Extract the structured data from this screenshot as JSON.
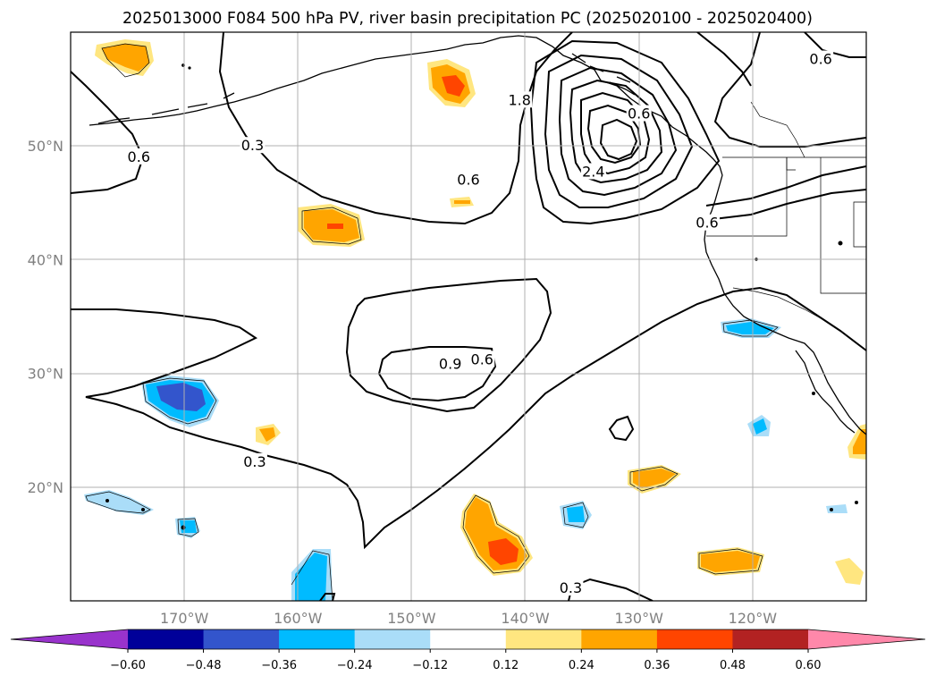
{
  "title": "2025013000 F084 500 hPa PV, river basin precipitation PC (2025020100 - 2025020400)",
  "map": {
    "lon_range": [
      -180,
      -110
    ],
    "lat_range": [
      10,
      60
    ],
    "lat_ticks": [
      {
        "lat": 50,
        "label": "50°N"
      },
      {
        "lat": 40,
        "label": "40°N"
      },
      {
        "lat": 30,
        "label": "30°N"
      },
      {
        "lat": 20,
        "label": "20°N"
      }
    ],
    "lon_ticks": [
      {
        "lon": -170,
        "label": "170°W"
      },
      {
        "lon": -160,
        "label": "160°W"
      },
      {
        "lon": -150,
        "label": "150°W"
      },
      {
        "lon": -140,
        "label": "140°W"
      },
      {
        "lon": -130,
        "label": "130°W"
      },
      {
        "lon": -120,
        "label": "120°W"
      }
    ],
    "grid": true,
    "colors": {
      "gridline": "#b0b0b0",
      "contour": "#000000",
      "coastline": "#000000"
    },
    "pv_contour_labels": [
      {
        "text": "0.6",
        "lon": -174,
        "lat": 49
      },
      {
        "text": "0.3",
        "lon": -164,
        "lat": 50
      },
      {
        "text": "0.6",
        "lon": -145,
        "lat": 47
      },
      {
        "text": "1.8",
        "lon": -140.5,
        "lat": 54
      },
      {
        "text": "2.4",
        "lon": -134,
        "lat": 47.7
      },
      {
        "text": "0.6",
        "lon": -130,
        "lat": 52.8
      },
      {
        "text": "0.6",
        "lon": -114,
        "lat": 57.6
      },
      {
        "text": "0.6",
        "lon": -124,
        "lat": 43.2
      },
      {
        "text": "0.9",
        "lon": -146.6,
        "lat": 30.8
      },
      {
        "text": "0.6",
        "lon": -143.8,
        "lat": 31.2
      },
      {
        "text": "0.3",
        "lon": -163.8,
        "lat": 22.2
      },
      {
        "text": "0.3",
        "lon": -136,
        "lat": 11.1
      }
    ]
  },
  "colorbar": {
    "levels": [
      -0.72,
      -0.6,
      -0.48,
      -0.36,
      -0.24,
      -0.12,
      0.12,
      0.24,
      0.36,
      0.48,
      0.6,
      0.72
    ],
    "tick_labels": [
      "−0.60",
      "−0.48",
      "−0.36",
      "−0.24",
      "−0.12",
      "0.12",
      "0.24",
      "0.36",
      "0.48",
      "0.60"
    ],
    "tick_values": [
      -0.6,
      -0.48,
      -0.36,
      -0.24,
      -0.12,
      0.12,
      0.24,
      0.36,
      0.48,
      0.6
    ],
    "colors": [
      "#9933cc",
      "#000099",
      "#3355cc",
      "#00bbff",
      "#aaddf8",
      "#ffffff",
      "#ffe680",
      "#ffa500",
      "#ff4500",
      "#b22222",
      "#ff88aa"
    ],
    "extend": "both"
  }
}
